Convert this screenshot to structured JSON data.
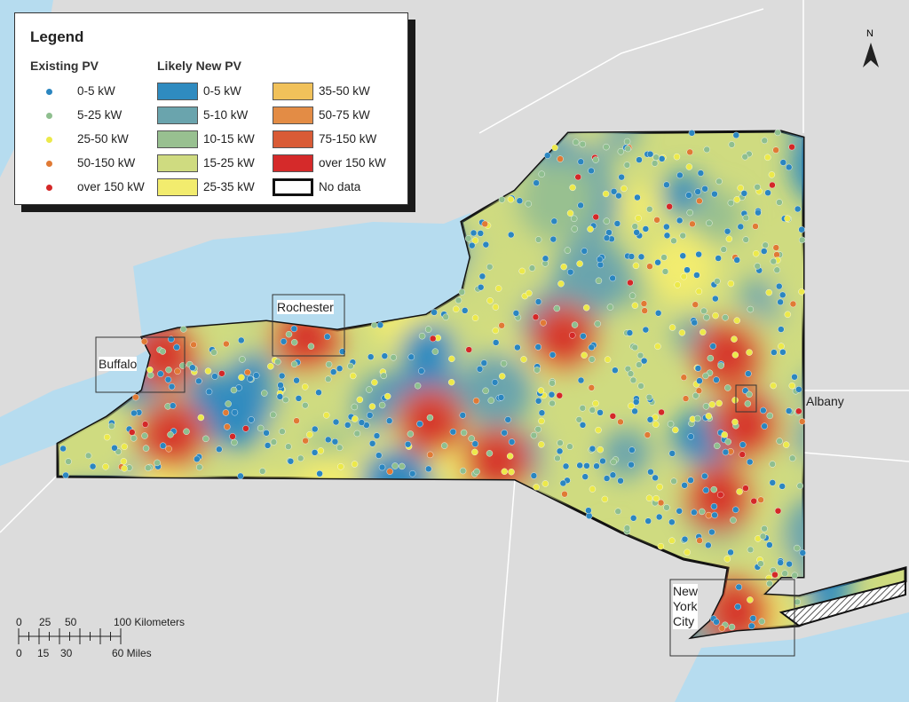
{
  "legend": {
    "title": "Legend",
    "existing_title": "Existing PV",
    "likely_title": "Likely New PV",
    "existing": [
      {
        "label": "0-5 kW",
        "color": "#2b86c0"
      },
      {
        "label": "5-25 kW",
        "color": "#8fbf8f"
      },
      {
        "label": "25-50 kW",
        "color": "#ece94a"
      },
      {
        "label": "50-150 kW",
        "color": "#e07a35"
      },
      {
        "label": "over 150 kW",
        "color": "#d42828"
      }
    ],
    "likely": [
      {
        "label": "0-5 kW",
        "color": "#2f8bc0"
      },
      {
        "label": "5-10 kW",
        "color": "#6aa4ad"
      },
      {
        "label": "10-15 kW",
        "color": "#98c090"
      },
      {
        "label": "15-25 kW",
        "color": "#cfdb80"
      },
      {
        "label": "25-35 kW",
        "color": "#f2ec6e"
      },
      {
        "label": "35-50 kW",
        "color": "#f1c15a"
      },
      {
        "label": "50-75 kW",
        "color": "#e38c45"
      },
      {
        "label": "75-150 kW",
        "color": "#d95b36"
      },
      {
        "label": "over 150 kW",
        "color": "#d52a2a"
      },
      {
        "label": "No data",
        "color": "hatched"
      }
    ]
  },
  "cities": {
    "buffalo": "Buffalo",
    "rochester": "Rochester",
    "albany": "Albany",
    "nyc_1": "New",
    "nyc_2": "York",
    "nyc_3": "City"
  },
  "north": "N",
  "scale": {
    "km_ticks": [
      "0",
      "25",
      "50",
      "100 Kilometers"
    ],
    "mi_ticks": [
      "0",
      "15",
      "30",
      "60 Miles"
    ]
  },
  "colors": {
    "water": "#b6dcef",
    "land": "#dcdcdc"
  }
}
